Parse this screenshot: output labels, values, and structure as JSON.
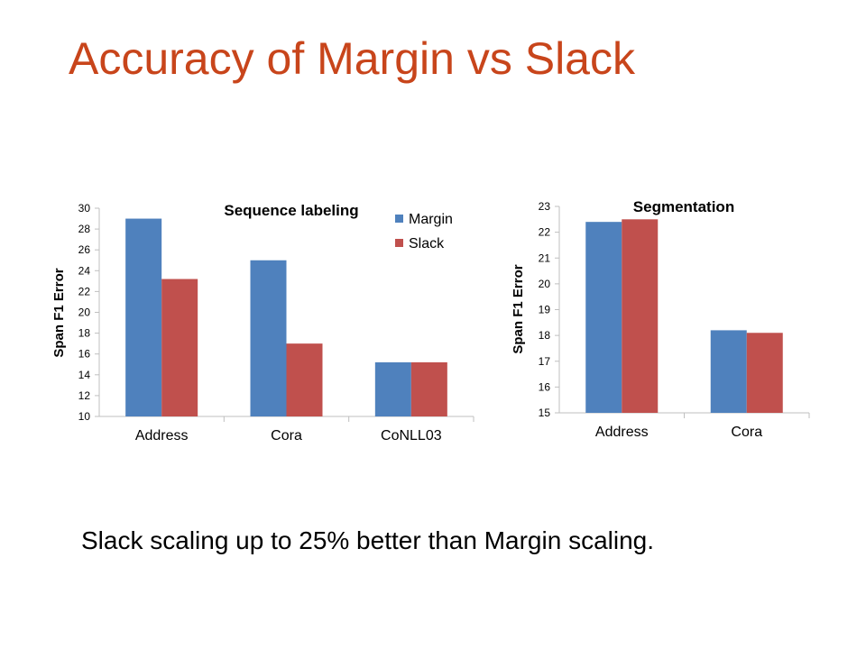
{
  "slide": {
    "title": "Accuracy of Margin vs Slack",
    "caption": "Slack scaling up to 25% better than Margin scaling."
  },
  "colors": {
    "title": "#c8451b",
    "margin": "#4f81bd",
    "slack": "#c0504d",
    "axis": "#bfbfbf"
  },
  "chart_data": [
    {
      "type": "bar",
      "title": "Sequence labeling",
      "ylabel": "Span F1 Error",
      "xlabel": "",
      "categories": [
        "Address",
        "Cora",
        "CoNLL03"
      ],
      "series": [
        {
          "name": "Margin",
          "values": [
            29,
            25,
            15.2
          ]
        },
        {
          "name": "Slack",
          "values": [
            23.2,
            17,
            15.2
          ]
        }
      ],
      "ylim": [
        10,
        30
      ],
      "yticks": [
        10,
        12,
        14,
        16,
        18,
        20,
        22,
        24,
        26,
        28,
        30
      ],
      "grid": false,
      "legend": "top-right"
    },
    {
      "type": "bar",
      "title": "Segmentation",
      "ylabel": "Span F1 Error",
      "xlabel": "",
      "categories": [
        "Address",
        "Cora"
      ],
      "series": [
        {
          "name": "Margin",
          "values": [
            22.4,
            18.2
          ]
        },
        {
          "name": "Slack",
          "values": [
            22.5,
            18.1
          ]
        }
      ],
      "ylim": [
        15,
        23
      ],
      "yticks": [
        15,
        16,
        17,
        18,
        19,
        20,
        21,
        22,
        23
      ],
      "grid": false,
      "legend": "none"
    }
  ]
}
